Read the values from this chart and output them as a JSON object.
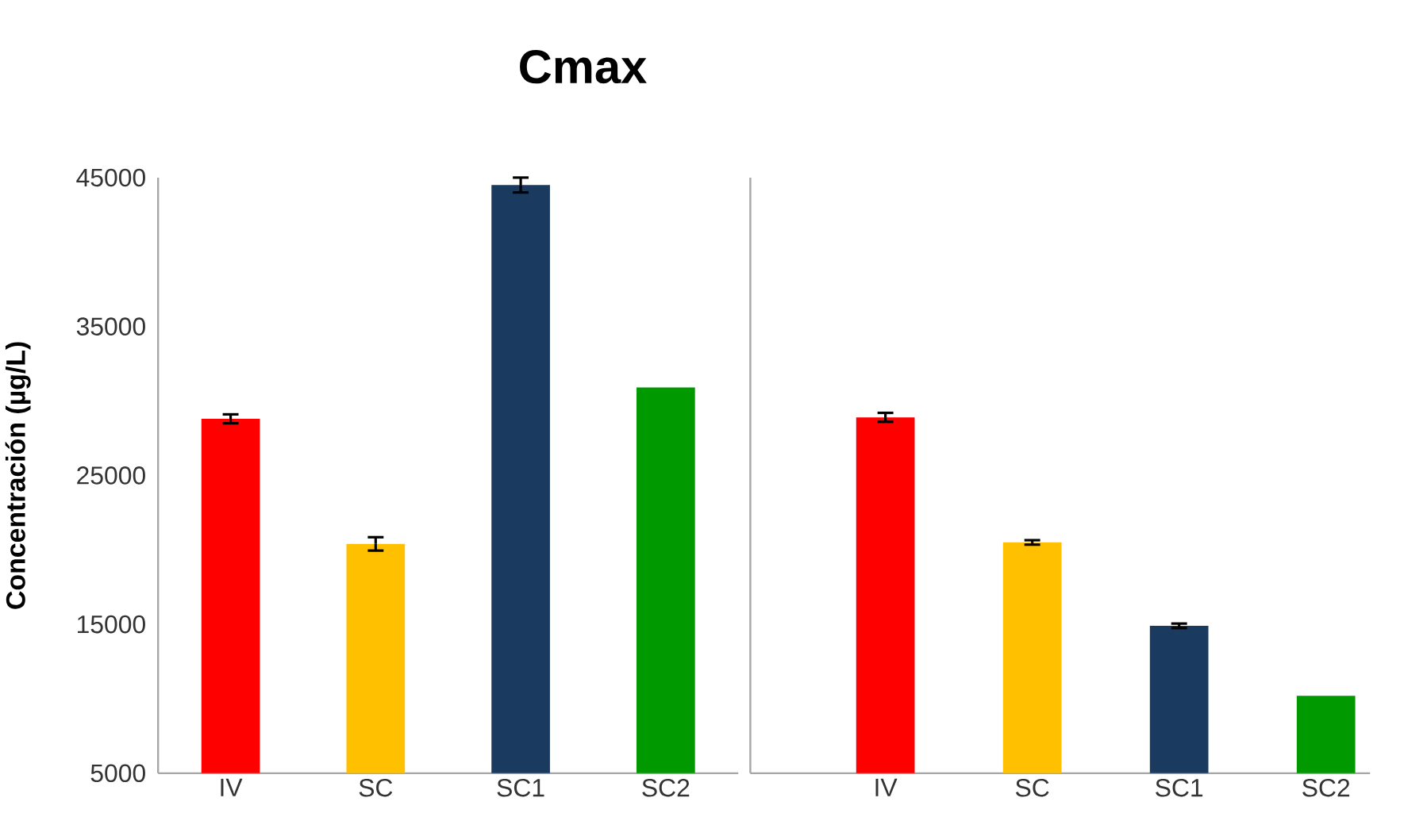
{
  "chart_data": [
    {
      "type": "bar",
      "title": "Cmax",
      "ylabel": "Concentración (µg/L)",
      "categories": [
        "IV",
        "SC",
        "SC1",
        "SC2"
      ],
      "values": [
        28800,
        20400,
        44500,
        30900
      ],
      "errors": [
        300,
        450,
        500,
        null
      ],
      "colors": [
        "#ff0000",
        "#ffc000",
        "#1a3a60",
        "#009900"
      ],
      "ylim": [
        5000,
        45000
      ],
      "yticks": [
        5000,
        15000,
        25000,
        35000,
        45000
      ]
    },
    {
      "type": "bar",
      "categories": [
        "IV",
        "SC",
        "SC1",
        "SC2"
      ],
      "values": [
        28900,
        20500,
        14900,
        10200
      ],
      "errors": [
        300,
        150,
        150,
        null
      ],
      "colors": [
        "#ff0000",
        "#ffc000",
        "#1a3a60",
        "#009900"
      ],
      "ylim": [
        5000,
        45000
      ],
      "yticks": [
        5000,
        15000,
        25000,
        35000,
        45000
      ],
      "tick_labels": "x"
    }
  ]
}
